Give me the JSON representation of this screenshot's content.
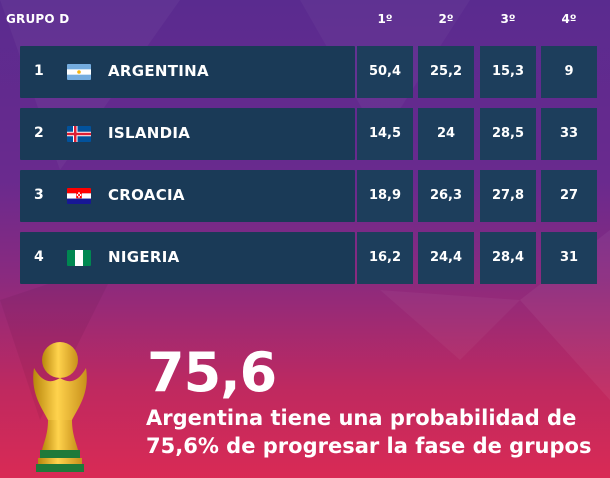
{
  "group": {
    "title": "GRUPO D"
  },
  "positions": [
    "1º",
    "2º",
    "3º",
    "4º"
  ],
  "teams": [
    {
      "rank": "1",
      "name": "ARGENTINA",
      "flag": "argentina-flag-icon",
      "values": [
        "50,4",
        "25,2",
        "15,3",
        "9"
      ]
    },
    {
      "rank": "2",
      "name": "ISLANDIA",
      "flag": "iceland-flag-icon",
      "values": [
        "14,5",
        "24",
        "28,5",
        "33"
      ]
    },
    {
      "rank": "3",
      "name": "CROACIA",
      "flag": "croatia-flag-icon",
      "values": [
        "18,9",
        "26,3",
        "27,8",
        "27"
      ]
    },
    {
      "rank": "4",
      "name": "NIGERIA",
      "flag": "nigeria-flag-icon",
      "values": [
        "16,2",
        "24,4",
        "28,4",
        "31"
      ]
    }
  ],
  "highlight": {
    "value": "75,6",
    "text_line1": "Argentina tiene una probabilidad de",
    "text_line2": "75,6% de progresar la fase de grupos"
  },
  "icons": {
    "trophy": "world-cup-trophy-icon"
  },
  "colors": {
    "row_bg": "#1a3a57",
    "cell_bg": "#1d3e5c",
    "bg_top": "#5a2b8f",
    "bg_bottom": "#d92a55"
  }
}
